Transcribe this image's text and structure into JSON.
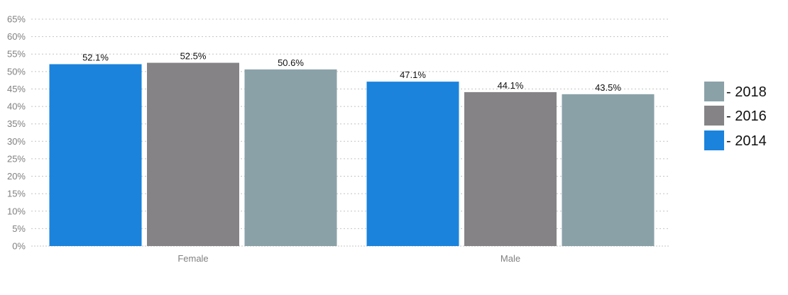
{
  "chart_data": {
    "type": "bar",
    "categories": [
      "Female",
      "Male"
    ],
    "series": [
      {
        "name": "- 2014",
        "color": "#1b83dc",
        "values": [
          52.1,
          47.1
        ],
        "labels": [
          "52.1%",
          "47.1%"
        ]
      },
      {
        "name": "- 2016",
        "color": "#858386",
        "values": [
          52.5,
          44.1
        ],
        "labels": [
          "52.5%",
          "44.1%"
        ]
      },
      {
        "name": "- 2018",
        "color": "#8aa1a8",
        "values": [
          50.6,
          43.5
        ],
        "labels": [
          "50.6%",
          "43.5%"
        ]
      }
    ],
    "ylim": [
      0,
      65
    ],
    "yticks": [
      0,
      5,
      10,
      15,
      20,
      25,
      30,
      35,
      40,
      45,
      50,
      55,
      60,
      65
    ],
    "ytick_labels": [
      "0%",
      "5%",
      "10%",
      "15%",
      "20%",
      "25%",
      "30%",
      "35%",
      "40%",
      "45%",
      "50%",
      "55%",
      "60%",
      "65%"
    ],
    "grid": true,
    "legend_position": "right",
    "legend_order": [
      "- 2018",
      "- 2016",
      "- 2014"
    ],
    "title": "",
    "xlabel": "",
    "ylabel": ""
  }
}
